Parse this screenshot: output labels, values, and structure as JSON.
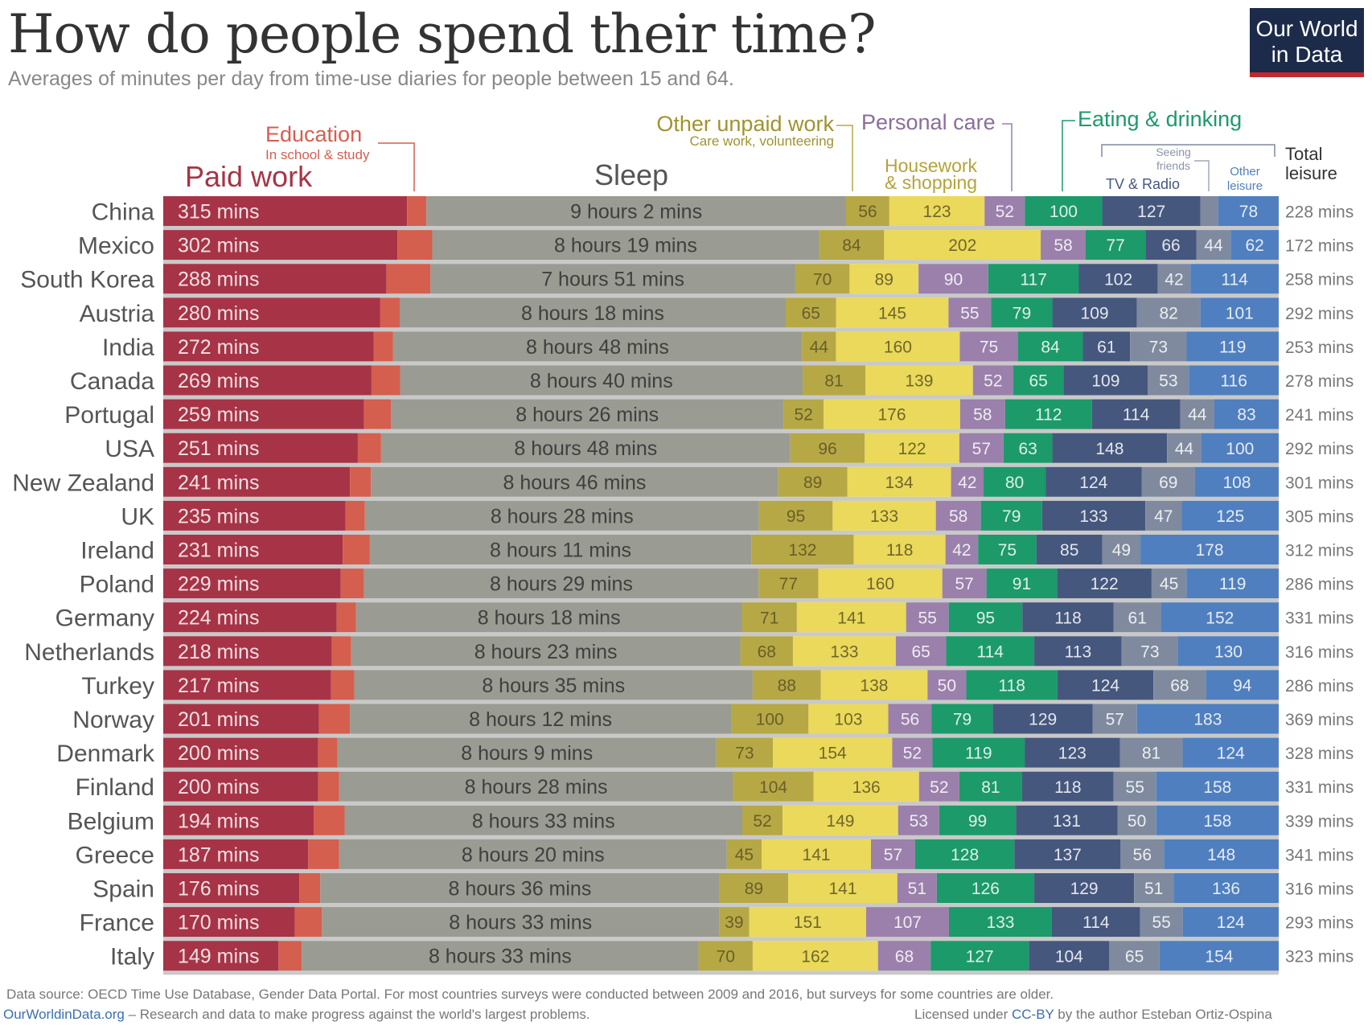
{
  "header": {
    "title": "How do people spend their time?",
    "subtitle": "Averages of minutes per day from time-use diaries for people between 15 and 64.",
    "logo_line1": "Our World",
    "logo_line2": "in Data"
  },
  "footer": {
    "source": "Data source: OECD Time Use Database, Gender Data Portal. For most countries surveys were conducted between 2009 and 2016, but surveys for some countries are older.",
    "site": "OurWorldinData.org",
    "tagline": " – Research and data to make progress against the world's largest problems.",
    "license_prefix": "Licensed under ",
    "license_link": "CC-BY",
    "license_suffix": " by the author Esteban Ortiz-Ospina"
  },
  "colors": {
    "paid_work": "#a63446",
    "education": "#d45f4f",
    "sleep": "#9a9b92",
    "other_unpaid": "#b6a845",
    "housework": "#ead95a",
    "personal_care": "#9a80ab",
    "eating": "#1c9a6a",
    "tv_radio": "#46577e",
    "seeing_friends": "#7f8a9e",
    "other_leisure": "#4f7fbf",
    "separator": "#c9c9c9"
  },
  "chart_data": {
    "type": "bar",
    "orientation": "horizontal-stacked",
    "unit": "minutes per day",
    "category_labels": {
      "paid_work": "Paid work",
      "education": "Education",
      "education_note": "In school & study",
      "sleep": "Sleep",
      "other_unpaid": "Other unpaid work",
      "other_unpaid_note": "Care work, volunteering",
      "personal_care": "Personal care",
      "housework": "Housework",
      "housework_line2": "& shopping",
      "eating": "Eating & drinking",
      "seeing_friends": "Seeing",
      "seeing_friends_line2": "friends",
      "tv_radio": "TV & Radio",
      "other_leisure": "Other",
      "other_leisure_line2": "leisure",
      "total_leisure": "Total",
      "total_leisure_line2": "leisure"
    },
    "countries": [
      {
        "name": "China",
        "paid": 315,
        "edu": 25,
        "sleep": 542,
        "sleep_label": "9 hours 2 mins",
        "unpaid": 56,
        "house": 123,
        "care": 52,
        "eat": 100,
        "tv": 127,
        "friends": 23,
        "other": 78,
        "total": 228
      },
      {
        "name": "Mexico",
        "paid": 302,
        "edu": 45,
        "sleep": 499,
        "sleep_label": "8 hours 19 mins",
        "unpaid": 84,
        "house": 202,
        "care": 58,
        "eat": 77,
        "tv": 66,
        "friends": 44,
        "other": 62,
        "total": 172
      },
      {
        "name": "South Korea",
        "paid": 288,
        "edu": 57,
        "sleep": 471,
        "sleep_label": "7 hours 51 mins",
        "unpaid": 70,
        "house": 89,
        "care": 90,
        "eat": 117,
        "tv": 102,
        "friends": 42,
        "other": 114,
        "total": 258
      },
      {
        "name": "Austria",
        "paid": 280,
        "edu": 25,
        "sleep": 498,
        "sleep_label": "8 hours 18 mins",
        "unpaid": 65,
        "house": 145,
        "care": 55,
        "eat": 79,
        "tv": 109,
        "friends": 82,
        "other": 101,
        "total": 292
      },
      {
        "name": "India",
        "paid": 272,
        "edu": 25,
        "sleep": 528,
        "sleep_label": "8 hours 48 mins",
        "unpaid": 44,
        "house": 160,
        "care": 75,
        "eat": 84,
        "tv": 61,
        "friends": 73,
        "other": 119,
        "total": 253
      },
      {
        "name": "Canada",
        "paid": 269,
        "edu": 37,
        "sleep": 520,
        "sleep_label": "8 hours 40 mins",
        "unpaid": 81,
        "house": 139,
        "care": 52,
        "eat": 65,
        "tv": 109,
        "friends": 53,
        "other": 116,
        "total": 278
      },
      {
        "name": "Portugal",
        "paid": 259,
        "edu": 35,
        "sleep": 506,
        "sleep_label": "8 hours 26 mins",
        "unpaid": 52,
        "house": 176,
        "care": 58,
        "eat": 112,
        "tv": 114,
        "friends": 44,
        "other": 83,
        "total": 241
      },
      {
        "name": "USA",
        "paid": 251,
        "edu": 30,
        "sleep": 528,
        "sleep_label": "8 hours 48 mins",
        "unpaid": 96,
        "house": 122,
        "care": 57,
        "eat": 63,
        "tv": 148,
        "friends": 44,
        "other": 100,
        "total": 292
      },
      {
        "name": "New Zealand",
        "paid": 241,
        "edu": 27,
        "sleep": 526,
        "sleep_label": "8 hours 46 mins",
        "unpaid": 89,
        "house": 134,
        "care": 42,
        "eat": 80,
        "tv": 124,
        "friends": 69,
        "other": 108,
        "total": 301
      },
      {
        "name": "UK",
        "paid": 235,
        "edu": 25,
        "sleep": 508,
        "sleep_label": "8 hours 28 mins",
        "unpaid": 95,
        "house": 133,
        "care": 58,
        "eat": 79,
        "tv": 133,
        "friends": 47,
        "other": 125,
        "total": 305
      },
      {
        "name": "Ireland",
        "paid": 231,
        "edu": 35,
        "sleep": 491,
        "sleep_label": "8 hours 11 mins",
        "unpaid": 132,
        "house": 118,
        "care": 42,
        "eat": 75,
        "tv": 85,
        "friends": 49,
        "other": 178,
        "total": 312
      },
      {
        "name": "Poland",
        "paid": 229,
        "edu": 30,
        "sleep": 509,
        "sleep_label": "8 hours 29 mins",
        "unpaid": 77,
        "house": 160,
        "care": 57,
        "eat": 91,
        "tv": 122,
        "friends": 45,
        "other": 119,
        "total": 286
      },
      {
        "name": "Germany",
        "paid": 224,
        "edu": 25,
        "sleep": 498,
        "sleep_label": "8 hours 18 mins",
        "unpaid": 71,
        "house": 141,
        "care": 55,
        "eat": 95,
        "tv": 118,
        "friends": 61,
        "other": 152,
        "total": 331
      },
      {
        "name": "Netherlands",
        "paid": 218,
        "edu": 25,
        "sleep": 503,
        "sleep_label": "8 hours 23 mins",
        "unpaid": 68,
        "house": 133,
        "care": 65,
        "eat": 114,
        "tv": 113,
        "friends": 73,
        "other": 130,
        "total": 316
      },
      {
        "name": "Turkey",
        "paid": 217,
        "edu": 30,
        "sleep": 515,
        "sleep_label": "8 hours 35 mins",
        "unpaid": 88,
        "house": 138,
        "care": 50,
        "eat": 118,
        "tv": 124,
        "friends": 68,
        "other": 94,
        "total": 286
      },
      {
        "name": "Norway",
        "paid": 201,
        "edu": 40,
        "sleep": 492,
        "sleep_label": "8 hours 12 mins",
        "unpaid": 100,
        "house": 103,
        "care": 56,
        "eat": 79,
        "tv": 129,
        "friends": 57,
        "other": 183,
        "total": 369
      },
      {
        "name": "Denmark",
        "paid": 200,
        "edu": 25,
        "sleep": 489,
        "sleep_label": "8 hours 9 mins",
        "unpaid": 73,
        "house": 154,
        "care": 52,
        "eat": 119,
        "tv": 123,
        "friends": 81,
        "other": 124,
        "total": 328
      },
      {
        "name": "Finland",
        "paid": 200,
        "edu": 27,
        "sleep": 508,
        "sleep_label": "8 hours 28 mins",
        "unpaid": 104,
        "house": 136,
        "care": 52,
        "eat": 81,
        "tv": 118,
        "friends": 55,
        "other": 158,
        "total": 331
      },
      {
        "name": "Belgium",
        "paid": 194,
        "edu": 40,
        "sleep": 513,
        "sleep_label": "8 hours 33 mins",
        "unpaid": 52,
        "house": 149,
        "care": 53,
        "eat": 99,
        "tv": 131,
        "friends": 50,
        "other": 158,
        "total": 339
      },
      {
        "name": "Greece",
        "paid": 187,
        "edu": 40,
        "sleep": 500,
        "sleep_label": "8 hours 20 mins",
        "unpaid": 45,
        "house": 141,
        "care": 57,
        "eat": 128,
        "tv": 137,
        "friends": 56,
        "other": 148,
        "total": 341
      },
      {
        "name": "Spain",
        "paid": 176,
        "edu": 27,
        "sleep": 516,
        "sleep_label": "8 hours 36 mins",
        "unpaid": 89,
        "house": 141,
        "care": 51,
        "eat": 126,
        "tv": 129,
        "friends": 51,
        "other": 136,
        "total": 316
      },
      {
        "name": "France",
        "paid": 170,
        "edu": 35,
        "sleep": 513,
        "sleep_label": "8 hours 33 mins",
        "unpaid": 39,
        "house": 151,
        "care": 107,
        "eat": 133,
        "tv": 114,
        "friends": 55,
        "other": 124,
        "total": 293
      },
      {
        "name": "Italy",
        "paid": 149,
        "edu": 30,
        "sleep": 513,
        "sleep_label": "8 hours 33 mins",
        "unpaid": 70,
        "house": 162,
        "care": 68,
        "eat": 127,
        "tv": 104,
        "friends": 65,
        "other": 154,
        "total": 323
      }
    ],
    "paid_label_suffix": " mins",
    "total_label_suffix": " mins"
  }
}
